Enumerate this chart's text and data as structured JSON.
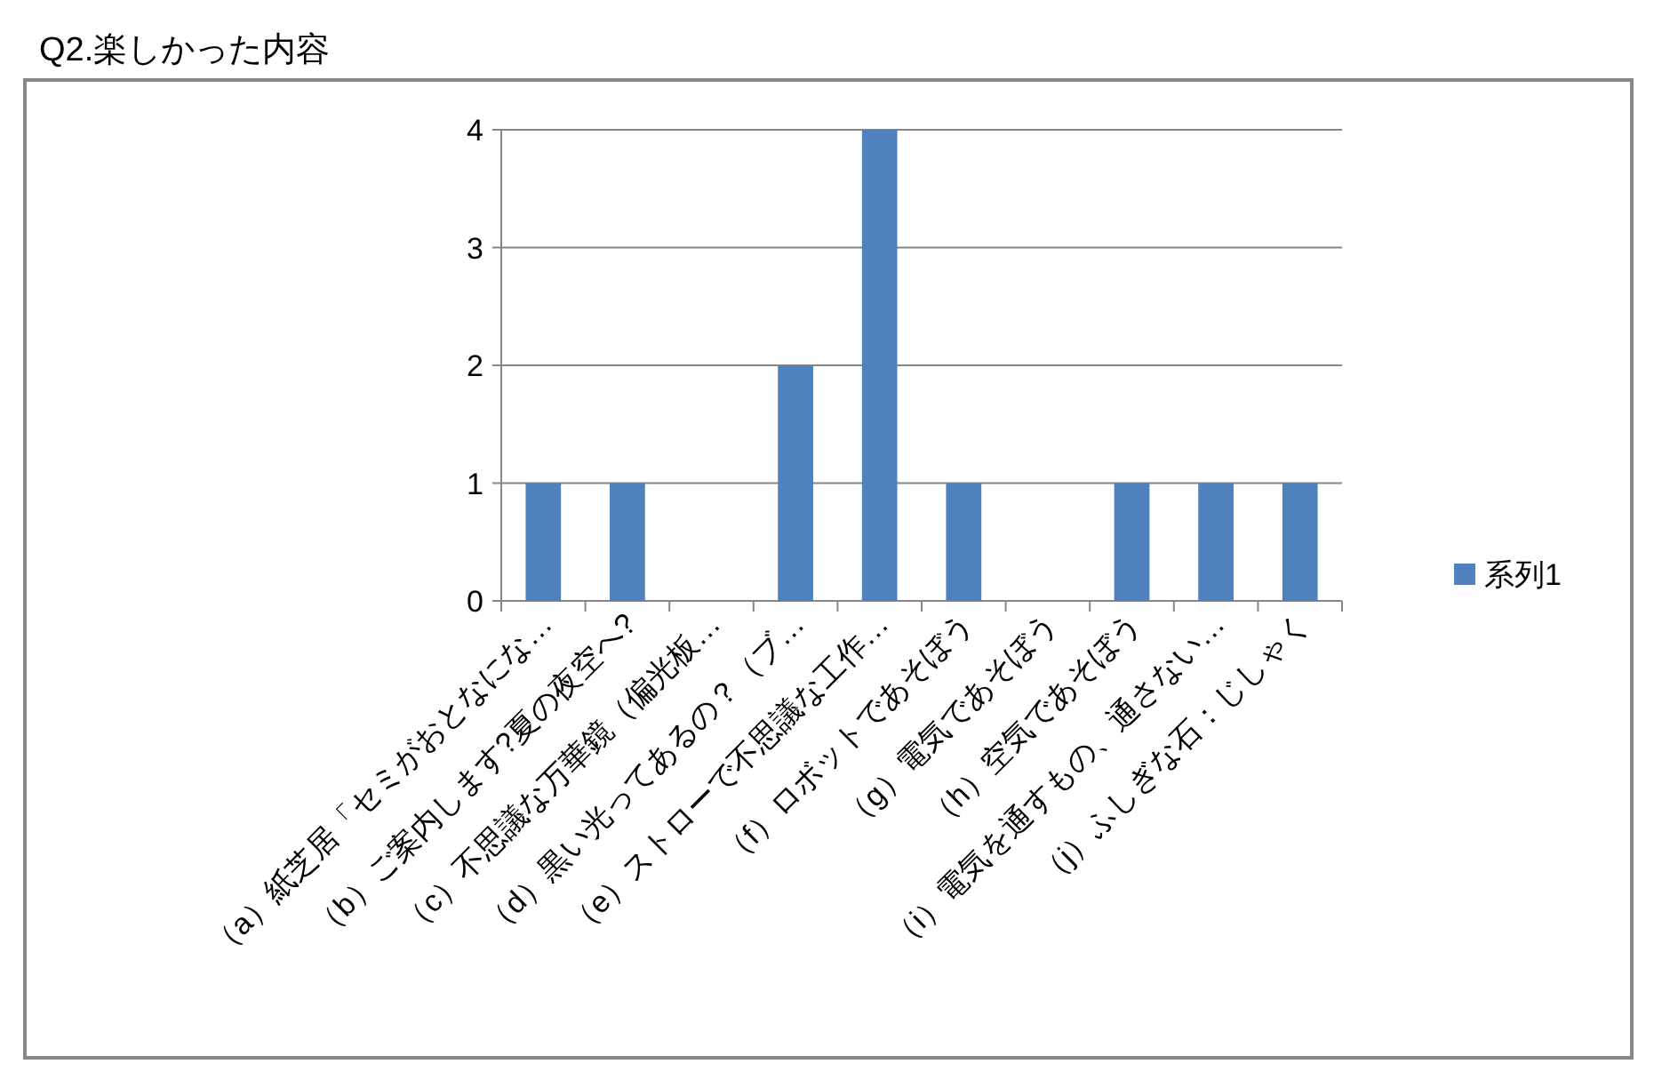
{
  "chart_data": {
    "type": "bar",
    "title": "Q2.楽しかった内容",
    "categories": [
      "（a）紙芝居「セミがおとなにな…",
      "（b）ご案内します?夏の夜空へ?",
      "（c）不思議な万華鏡（偏光板…",
      "（d）黒い光ってあるの？（ブ…",
      "（e）ストローで不思議な工作…",
      "（f）ロボットであそぼう",
      "（g）電気であそぼう",
      "（h）空気であそぼう",
      "（i）電気を通すもの、通さない…",
      "（j）ふしぎな石：じしゃく"
    ],
    "series": [
      {
        "name": "系列1",
        "color": "#4f81bd",
        "values": [
          1,
          1,
          0,
          2,
          4,
          1,
          0,
          1,
          1,
          1
        ]
      }
    ],
    "ylim": [
      0,
      4
    ],
    "yticks": [
      0,
      1,
      2,
      3,
      4
    ],
    "grid": "y",
    "legend": "right"
  }
}
